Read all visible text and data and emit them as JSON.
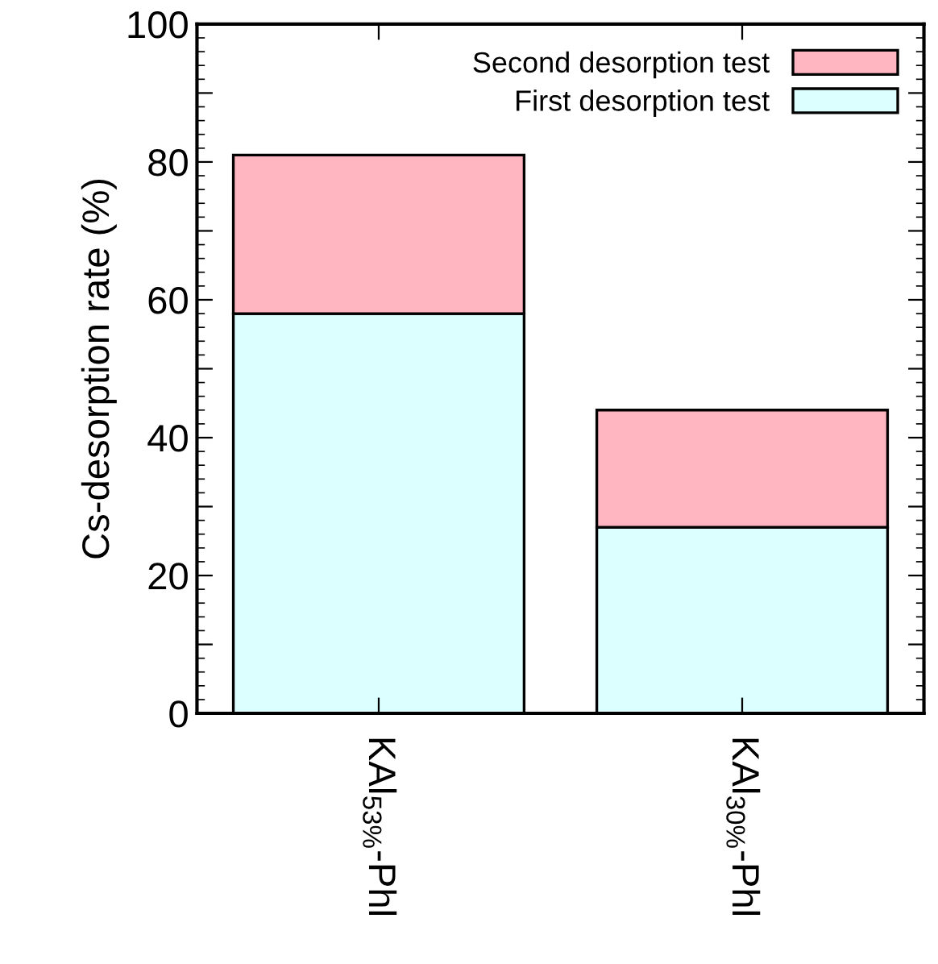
{
  "chart_data": {
    "type": "bar",
    "stacked": true,
    "ylabel": "Cs-desorption rate (%)",
    "categories": [
      "KAl$_{53%}$-Phl",
      "KAl$_{30%}$-Phl"
    ],
    "series": [
      {
        "name": "First desorption test",
        "color": "#dcffff",
        "values": [
          58,
          27
        ]
      },
      {
        "name": "Second desorption test",
        "color": "#ffb6c1",
        "values": [
          23,
          17
        ]
      }
    ],
    "ylim": [
      0,
      100
    ],
    "yticks": [
      0,
      {
        "value": 10,
        "label": null
      },
      20,
      {
        "value": 30,
        "label": null
      },
      40,
      {
        "value": 50,
        "label": null
      },
      60,
      {
        "value": 70,
        "label": null
      },
      80,
      {
        "value": 90,
        "label": null
      },
      100
    ],
    "grid": false,
    "legend": "top right"
  }
}
